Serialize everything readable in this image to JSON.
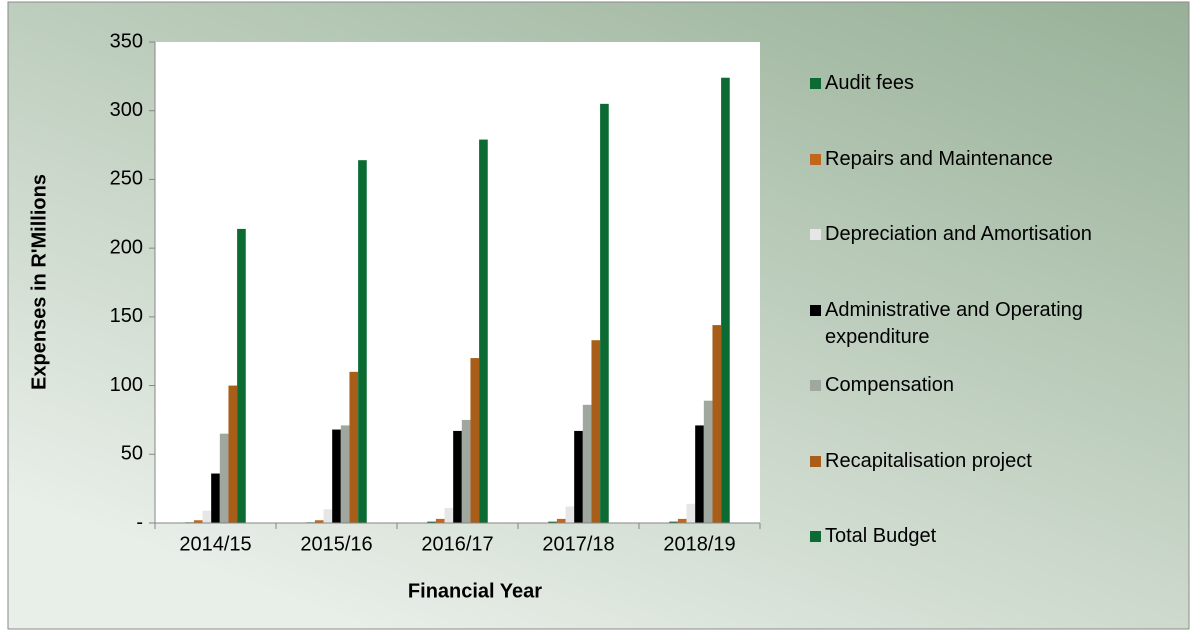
{
  "chart_data": {
    "type": "bar",
    "x_label": "Financial Year",
    "y_label": "Expenses in R'Millions",
    "categories": [
      "2014/15",
      "2015/16",
      "2016/17",
      "2017/18",
      "2018/19"
    ],
    "series": [
      {
        "name": "Audit fees",
        "color": "#0b6b32",
        "values": [
          0.5,
          0.5,
          1,
          1,
          1
        ]
      },
      {
        "name": "Repairs and Maintenance",
        "color": "#c0671c",
        "values": [
          2,
          2,
          3,
          3,
          3
        ]
      },
      {
        "name": "Depreciation and Amortisation",
        "color": "#e6e6e6",
        "values": [
          9,
          10,
          11,
          12,
          14
        ]
      },
      {
        "name": "Administrative and Operating expenditure",
        "color": "#000000",
        "values": [
          36,
          68,
          67,
          67,
          71
        ]
      },
      {
        "name": "Compensation",
        "color": "#9fa79f",
        "values": [
          65,
          71,
          75,
          86,
          89
        ]
      },
      {
        "name": "Recapitalisation project",
        "color": "#a85d18",
        "values": [
          100,
          110,
          120,
          133,
          144
        ]
      },
      {
        "name": "Total Budget",
        "color": "#0b6b32",
        "values": [
          214,
          264,
          279,
          305,
          324
        ]
      }
    ],
    "ylim": [
      0,
      350
    ],
    "yticks": [
      {
        "value": 0,
        "label": "-"
      },
      50,
      100,
      150,
      200,
      250,
      300,
      350
    ],
    "grid": false
  }
}
